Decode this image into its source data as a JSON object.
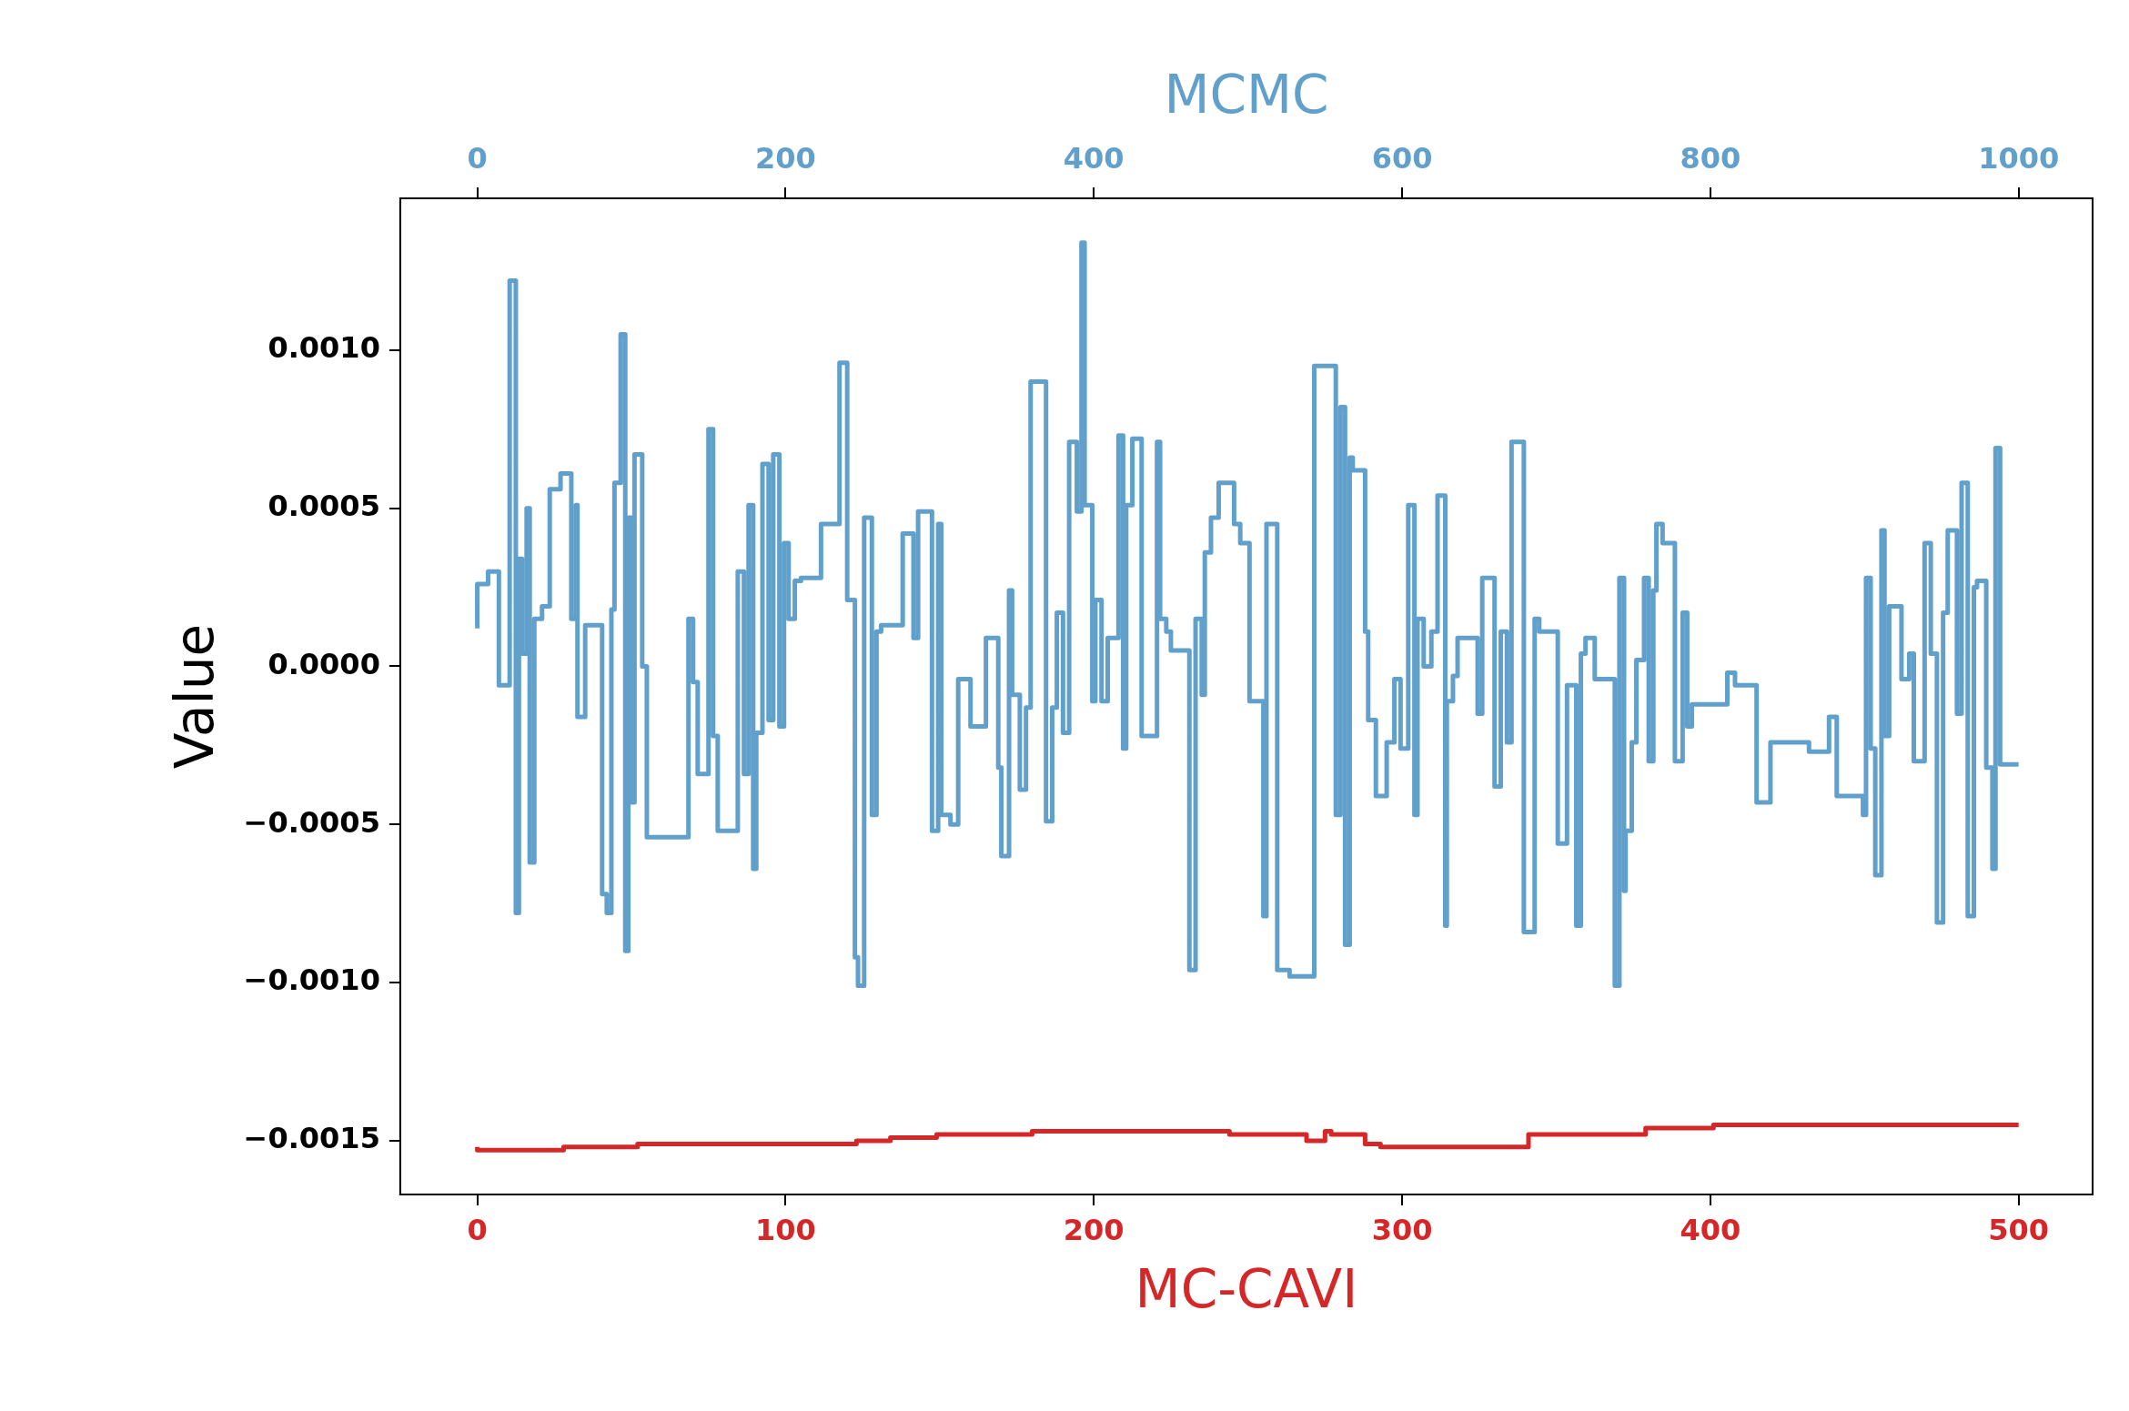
{
  "chart_data": {
    "type": "step",
    "xlabel": "MC-CAVI",
    "x2label": "MCMC",
    "ylabel": "Value",
    "xlim": [
      -25,
      524
    ],
    "xticks": [
      0,
      100,
      200,
      300,
      400,
      500
    ],
    "x2lim": [
      -50,
      1048
    ],
    "x2ticks": [
      0,
      200,
      400,
      600,
      800,
      1000
    ],
    "ylim": [
      -0.00167,
      0.00148
    ],
    "yticks": [
      {
        "value": -0.0015,
        "label": "−0.0015"
      },
      {
        "value": -0.001,
        "label": "−0.0010"
      },
      {
        "value": -0.0005,
        "label": "−0.0005"
      },
      {
        "value": 0,
        "label": "0.0000"
      },
      {
        "value": 0.0005,
        "label": "0.0005"
      },
      {
        "value": 0.001,
        "label": "0.0010"
      }
    ],
    "grid": false,
    "legend": false,
    "series": [
      {
        "axis": "x2",
        "color": "#62a0cc",
        "x": [
          0,
          7,
          14,
          21,
          25,
          27,
          29,
          32,
          34,
          37,
          42,
          47,
          54,
          61,
          64,
          65,
          70,
          81,
          84,
          87,
          89,
          93,
          96,
          98,
          100,
          102,
          107,
          110,
          137,
          140,
          143,
          150,
          153,
          156,
          169,
          173,
          176,
          179,
          181,
          185,
          189,
          192,
          196,
          199,
          202,
          206,
          210,
          223,
          235,
          240,
          245,
          247,
          251,
          256,
          259,
          262,
          276,
          283,
          286,
          295,
          299,
          301,
          307,
          312,
          320,
          330,
          338,
          340,
          345,
          347,
          352,
          356,
          359,
          369,
          373,
          376,
          380,
          384,
          389,
          392,
          394,
          399,
          401,
          405,
          409,
          416,
          419,
          421,
          425,
          431,
          441,
          443,
          447,
          450,
          462,
          466,
          470,
          472,
          476,
          481,
          491,
          495,
          501,
          510,
          512,
          519,
          527,
          543,
          557,
          560,
          563,
          566,
          568,
          576,
          578,
          583,
          590,
          595,
          599,
          604,
          608,
          610,
          614,
          619,
          623,
          628,
          629,
          633,
          636,
          649,
          652,
          660,
          664,
          668,
          671,
          679,
          686,
          689,
          701,
          707,
          713,
          716,
          719,
          725,
          738,
          741,
          744,
          745,
          749,
          752,
          757,
          760,
          763,
          765,
          769,
          777,
          782,
          785,
          788,
          811,
          816,
          830,
          839,
          864,
          877,
          882,
          899,
          901,
          904,
          907,
          911,
          913,
          916,
          924,
          929,
          932,
          939,
          943,
          947,
          951,
          954,
          960,
          963,
          967,
          971,
          973,
          979,
          983,
          985,
          988,
          990,
          1000
        ],
        "values": [
          0.00012,
          0.00026,
          0.0003,
          -6e-05,
          0.00122,
          -0.00078,
          0.00034,
          4e-05,
          0.0005,
          -0.00062,
          0.00015,
          0.00019,
          0.00056,
          0.00061,
          0.00015,
          0.00051,
          -0.00016,
          0.00013,
          -0.00072,
          -0.00078,
          0.00018,
          0.00058,
          0.00105,
          -0.0009,
          0.00047,
          -0.00043,
          0.00067,
          0,
          -0.00054,
          0.00015,
          -5e-05,
          -0.00034,
          0.00075,
          -0.00022,
          -0.00052,
          0.0003,
          -0.00034,
          0.00051,
          -0.00064,
          -0.00021,
          0.00064,
          -0.00017,
          0.00067,
          -0.00019,
          0.00039,
          0.00015,
          0.00027,
          0.00028,
          0.00045,
          0.00096,
          0.00021,
          -0.00092,
          -0.00101,
          0.00047,
          -0.00047,
          0.00011,
          0.00013,
          0.00042,
          9e-05,
          0.00049,
          -0.00052,
          0.00045,
          -0.00047,
          -0.0005,
          -4e-05,
          -0.00019,
          9e-05,
          -0.00032,
          -0.0006,
          0.00024,
          -9e-05,
          -0.00039,
          -0.00013,
          0.0009,
          -0.00049,
          -0.00013,
          0.00017,
          -0.00021,
          0.00071,
          0.00049,
          0.00134,
          0.00051,
          -0.00011,
          0.00021,
          -0.00011,
          9e-05,
          0.00073,
          -0.00026,
          0.00051,
          0.00072,
          -0.00022,
          0.00071,
          0.00015,
          0.00011,
          5e-05,
          -0.00096,
          0.00015,
          -9e-05,
          0.00036,
          0.00047,
          0.00058,
          0.00045,
          0.00039,
          -0.00011,
          -0.00079,
          0.00045,
          -0.00096,
          -0.00098,
          0.00095,
          -0.00047,
          0.00082,
          -0.00088,
          0.00066,
          0.00062,
          0.00011,
          -0.00017,
          -0.00041,
          -0.00024,
          -4e-05,
          -0.00026,
          0.00051,
          -0.00047,
          0.00015,
          0,
          0.00011,
          0.00054,
          -0.00082,
          -0.00011,
          -3e-05,
          9e-05,
          -0.00015,
          0.00028,
          -0.00038,
          0.00011,
          -0.00024,
          0.00071,
          -0.00084,
          0.00015,
          0.00011,
          -0.00056,
          -6e-05,
          -0.00082,
          4e-05,
          9e-05,
          -4e-05,
          -0.00101,
          0.00028,
          -0.00071,
          -0.00052,
          -0.00024,
          2e-05,
          0.00028,
          -0.0003,
          0.00024,
          0.00045,
          0.00039,
          -0.0003,
          0.00017,
          -0.00019,
          -0.00012,
          -2e-05,
          -6e-05,
          -0.00043,
          -0.00024,
          -0.00027,
          -0.00016,
          -0.00041,
          -0.00047,
          0.00028,
          -0.00026,
          -0.00066,
          0.00043,
          -0.00022,
          0.00019,
          -4e-05,
          4e-05,
          -0.0003,
          0.00039,
          4e-05,
          -0.00081,
          0.00017,
          0.00043,
          -0.00015,
          0.00058,
          -0.00079,
          0.00025,
          0.00027,
          -0.00032,
          -0.00064,
          0.00069,
          -0.00031,
          -0.00031
        ]
      },
      {
        "color": "#d62728",
        "x": [
          0,
          19,
          28,
          43,
          52,
          123,
          134,
          149,
          180,
          196,
          220,
          244,
          269,
          275,
          277,
          288,
          293,
          315,
          341,
          359,
          379,
          401,
          425,
          439,
          461,
          481,
          500
        ],
        "values": [
          -0.00152,
          -0.00153,
          -0.00153,
          -0.00152,
          -0.00152,
          -0.00151,
          -0.0015,
          -0.00149,
          -0.00148,
          -0.00147,
          -0.00147,
          -0.00147,
          -0.00148,
          -0.0015,
          -0.00147,
          -0.00148,
          -0.00151,
          -0.00152,
          -0.00152,
          -0.00148,
          -0.00148,
          -0.00146,
          -0.00145,
          -0.00145,
          -0.00145,
          -0.00145,
          -0.00145
        ]
      }
    ]
  }
}
